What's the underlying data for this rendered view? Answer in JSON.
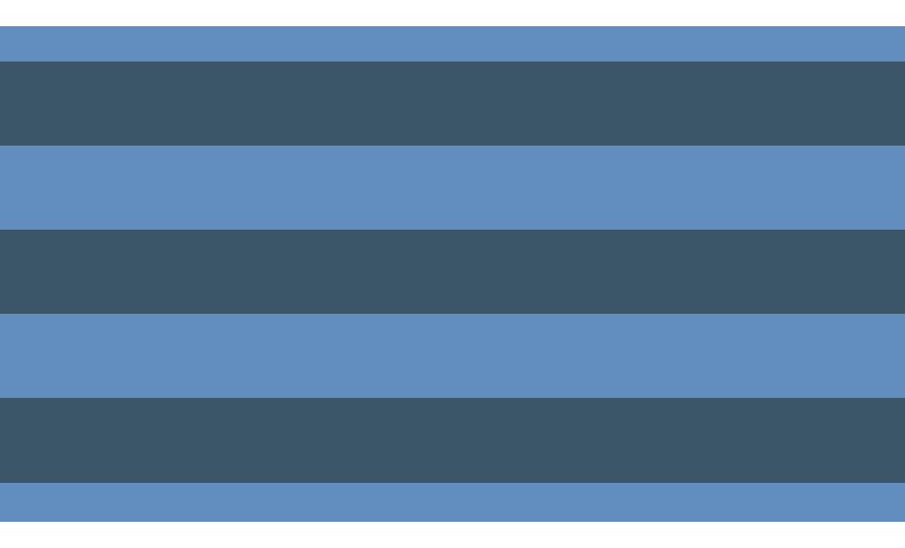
{
  "colors": {
    "background": "#ffffff",
    "light_stripe": "#628dbf",
    "dark_stripe": "#3b5669"
  },
  "stripes": [
    "light",
    "dark",
    "light",
    "dark",
    "light",
    "dark",
    "light"
  ]
}
